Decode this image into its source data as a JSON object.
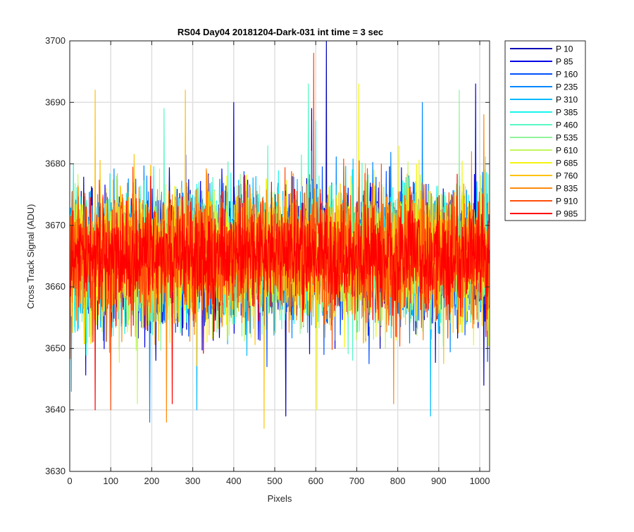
{
  "chart_data": {
    "type": "line",
    "title": "RS04 Day04 20181204-Dark-031 int time = 3 sec",
    "xlabel": "Pixels",
    "ylabel": "Cross Track Signal (ADU)",
    "xlim": [
      0,
      1024
    ],
    "ylim": [
      3630,
      3700
    ],
    "x_ticks": [
      0,
      100,
      200,
      300,
      400,
      500,
      600,
      700,
      800,
      900,
      1000
    ],
    "y_ticks": [
      3630,
      3640,
      3650,
      3660,
      3670,
      3680,
      3690,
      3700
    ],
    "grid": true,
    "legend_position": "outside-top-right",
    "x": "pixel index 0..1023 (1024 samples per series)",
    "series": [
      {
        "name": "P 10",
        "color": "#0000b4",
        "mean": 3665,
        "spread": 8,
        "notable_points": [
          [
            626,
            3700
          ],
          [
            527,
            3639
          ],
          [
            1010,
            3644
          ]
        ]
      },
      {
        "name": "P 85",
        "color": "#0000e6",
        "mean": 3665,
        "spread": 8,
        "notable_points": [
          [
            400,
            3690
          ],
          [
            590,
            3689
          ],
          [
            990,
            3693
          ]
        ]
      },
      {
        "name": "P 160",
        "color": "#0050ff",
        "mean": 3665,
        "spread": 8,
        "notable_points": [
          [
            620,
            3649
          ],
          [
            290,
            3652
          ]
        ]
      },
      {
        "name": "P 235",
        "color": "#0087ff",
        "mean": 3665,
        "spread": 8,
        "notable_points": [
          [
            195,
            3638
          ],
          [
            860,
            3690
          ]
        ]
      },
      {
        "name": "P 310",
        "color": "#00b9ff",
        "mean": 3665,
        "spread": 8,
        "notable_points": [
          [
            4,
            3643
          ],
          [
            310,
            3640
          ],
          [
            880,
            3639
          ]
        ]
      },
      {
        "name": "P 385",
        "color": "#17f6ec",
        "mean": 3665,
        "spread": 8,
        "notable_points": [
          [
            330,
            3660
          ],
          [
            600,
            3687
          ]
        ]
      },
      {
        "name": "P 460",
        "color": "#58f7c6",
        "mean": 3665,
        "spread": 8,
        "notable_points": [
          [
            582,
            3693
          ],
          [
            230,
            3689
          ]
        ]
      },
      {
        "name": "P 535",
        "color": "#8ef59a",
        "mean": 3665,
        "spread": 8,
        "notable_points": [
          [
            950,
            3692
          ],
          [
            420,
            3652
          ]
        ]
      },
      {
        "name": "P 610",
        "color": "#c2f75c",
        "mean": 3665,
        "spread": 8,
        "notable_points": [
          [
            165,
            3641
          ],
          [
            770,
            3650
          ]
        ]
      },
      {
        "name": "P 685",
        "color": "#f4f410",
        "mean": 3665,
        "spread": 8,
        "notable_points": [
          [
            603,
            3640
          ],
          [
            705,
            3693
          ]
        ]
      },
      {
        "name": "P 760",
        "color": "#ffc20b",
        "mean": 3665,
        "spread": 8,
        "notable_points": [
          [
            474,
            3637
          ],
          [
            62,
            3692
          ],
          [
            282,
            3692
          ]
        ]
      },
      {
        "name": "P 835",
        "color": "#ff8a0d",
        "mean": 3665,
        "spread": 8,
        "notable_points": [
          [
            236,
            3638
          ],
          [
            790,
            3641
          ],
          [
            1010,
            3688
          ]
        ]
      },
      {
        "name": "P 910",
        "color": "#ff4c0a",
        "mean": 3665,
        "spread": 8,
        "notable_points": [
          [
            595,
            3698
          ],
          [
            100,
            3640
          ]
        ]
      },
      {
        "name": "P 985",
        "color": "#ff0000",
        "mean": 3665,
        "spread": 7,
        "notable_points": [
          [
            62,
            3640
          ],
          [
            250,
            3641
          ]
        ]
      }
    ]
  }
}
